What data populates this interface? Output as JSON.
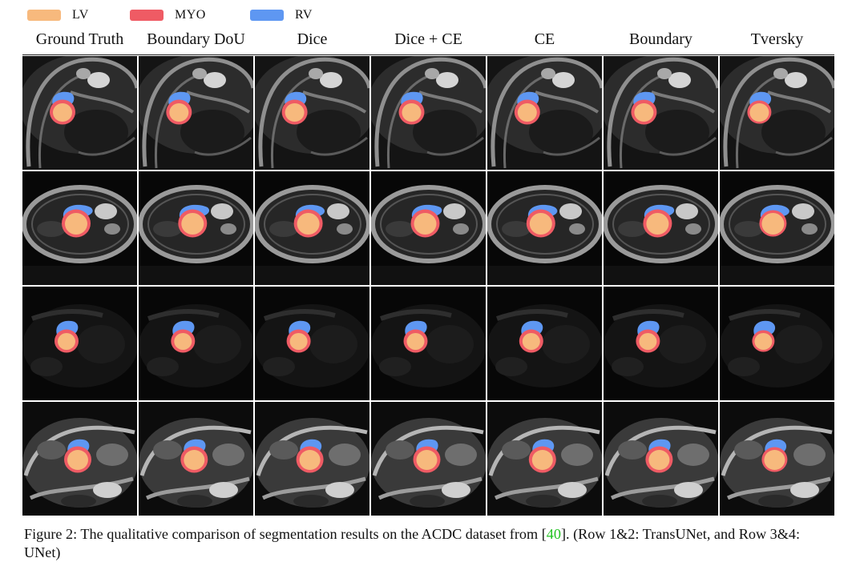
{
  "legend": [
    {
      "label": "LV",
      "color": "#f7b97d"
    },
    {
      "label": "MYO",
      "color": "#ef5b64"
    },
    {
      "label": "RV",
      "color": "#5e97f2"
    }
  ],
  "columns": [
    "Ground Truth",
    "Boundary DoU",
    "Dice",
    "Dice + CE",
    "CE",
    "Boundary",
    "Tversky"
  ],
  "rows": [
    {
      "row": 1,
      "model": "TransUNet"
    },
    {
      "row": 2,
      "model": "TransUNet"
    },
    {
      "row": 3,
      "model": "UNet"
    },
    {
      "row": 4,
      "model": "UNet"
    }
  ],
  "caption": {
    "prefix": "Figure 2: The qualitative comparison of segmentation results on the ACDC dataset from [",
    "ref": "40",
    "suffix": "]. (Row 1&2: TransUNet, and Row 3&4: UNet)"
  }
}
